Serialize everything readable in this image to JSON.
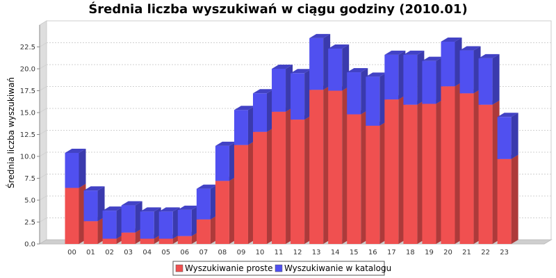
{
  "chart_data": {
    "type": "bar",
    "stacked": true,
    "style": "3d",
    "title": "Średnia liczba wyszukiwań w ciągu godziny (2010.01)",
    "xlabel": "",
    "ylabel": "Średnia liczba wyszukiwań",
    "ylim": [
      0,
      25
    ],
    "yticks": [
      "0.0",
      "2.5",
      "5.0",
      "7.5",
      "10.0",
      "12.5",
      "15.0",
      "17.5",
      "20.0",
      "22.5"
    ],
    "grid": true,
    "legend_position": "bottom",
    "categories": [
      "00",
      "01",
      "02",
      "03",
      "04",
      "05",
      "06",
      "07",
      "08",
      "09",
      "10",
      "11",
      "12",
      "13",
      "14",
      "15",
      "16",
      "17",
      "18",
      "19",
      "20",
      "21",
      "22",
      "23"
    ],
    "series": [
      {
        "name": "Wyszukiwanie proste",
        "color": "#f05050",
        "values": [
          6.4,
          2.6,
          0.6,
          1.3,
          0.6,
          0.6,
          0.9,
          2.8,
          7.2,
          11.3,
          12.8,
          15.1,
          14.2,
          17.6,
          17.5,
          14.8,
          13.5,
          16.5,
          15.9,
          16.0,
          18.0,
          17.2,
          15.9,
          9.7
        ]
      },
      {
        "name": "Wyszukiwanie w katalogu",
        "color": "#5050f0",
        "values": [
          4.0,
          3.5,
          3.2,
          3.1,
          3.1,
          3.1,
          3.0,
          3.5,
          4.0,
          4.0,
          4.4,
          4.9,
          5.3,
          5.9,
          4.8,
          4.8,
          5.6,
          5.1,
          5.7,
          4.9,
          5.1,
          4.9,
          5.3,
          4.8
        ]
      }
    ]
  }
}
